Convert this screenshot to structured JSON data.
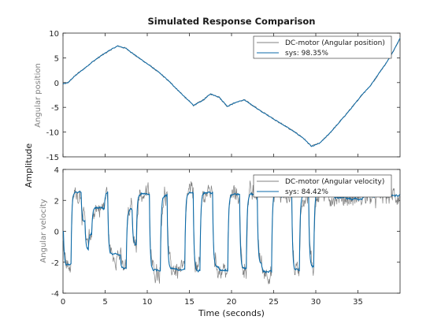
{
  "figure": {
    "title": "Simulated Response Comparison",
    "ylabel": "Amplitude",
    "xlabel": "Time (seconds)"
  },
  "colors": {
    "measured": "#808080",
    "model": "#0b6aa8",
    "axes": "#262626",
    "background": "#ffffff"
  },
  "chart_data": [
    {
      "type": "line",
      "ylabel": "Angular position",
      "xlim": [
        0,
        40
      ],
      "ylim": [
        -15,
        10
      ],
      "xticks": [
        0,
        5,
        10,
        15,
        20,
        25,
        30,
        35
      ],
      "yticks": [
        10,
        5,
        0,
        -5,
        -10,
        -15
      ],
      "grid": false,
      "legend_position": "top-right",
      "series": [
        {
          "name": "DC-motor (Angular position)",
          "style": "measured"
        },
        {
          "name": "sys: 98.35%",
          "style": "model"
        }
      ],
      "x": [
        0,
        0.6,
        1.5,
        2.5,
        3.5,
        4.5,
        5.5,
        6.5,
        7.5,
        8.5,
        9.5,
        10.5,
        11.5,
        12.5,
        13.5,
        14.5,
        15.5,
        16.5,
        17.5,
        18.5,
        19.5,
        20.5,
        21.5,
        22.5,
        23.5,
        24.5,
        25.5,
        26.5,
        27.5,
        28.5,
        29.5,
        30.5,
        31.5,
        32.5,
        33.5,
        34.5,
        35.5,
        36.5,
        37.5,
        38.5,
        39.5,
        40
      ],
      "y": [
        -0.3,
        0,
        1.5,
        2.8,
        4.2,
        5.4,
        6.5,
        7.4,
        6.9,
        5.6,
        4.4,
        3.2,
        1.9,
        0.4,
        -1.3,
        -3.0,
        -4.6,
        -3.7,
        -2.3,
        -2.9,
        -4.8,
        -4.0,
        -3.5,
        -4.6,
        -5.8,
        -6.8,
        -7.9,
        -8.9,
        -10.0,
        -11.2,
        -12.9,
        -12.2,
        -10.5,
        -8.6,
        -6.6,
        -4.6,
        -2.4,
        -0.6,
        1.9,
        4.3,
        7.3,
        9.0
      ]
    },
    {
      "type": "line",
      "ylabel": "Angular velocity",
      "xlim": [
        0,
        40
      ],
      "ylim": [
        -4,
        4
      ],
      "xticks": [
        0,
        5,
        10,
        15,
        20,
        25,
        30,
        35
      ],
      "yticks": [
        4,
        2,
        0,
        -2,
        -4
      ],
      "grid": false,
      "legend_position": "top-right",
      "series": [
        {
          "name": "DC-motor (Angular velocity)",
          "style": "measured"
        },
        {
          "name": "sys: 84.42%",
          "style": "model"
        }
      ],
      "switch_times": [
        0.1,
        1.0,
        2.2,
        2.6,
        3.0,
        3.4,
        4.9,
        5.3,
        6.8,
        7.5,
        8.2,
        8.7,
        10.3,
        11.6,
        12.4,
        13.4,
        14.5,
        15.5,
        16.3,
        17.8,
        18.5,
        19.6,
        21.0,
        21.8,
        23.1,
        23.6,
        24.8,
        25.8,
        27.2,
        28.1,
        29.2,
        29.8,
        31.0,
        32.2,
        33.6,
        35.5,
        40.0
      ],
      "switch_levels": [
        -2.2,
        2.5,
        0.6,
        -1.2,
        -0.2,
        1.5,
        2.5,
        -1.5,
        -2.4,
        1.4,
        -0.9,
        2.4,
        -2.5,
        2.3,
        -2.4,
        -2.5,
        2.5,
        -2.5,
        2.5,
        -2.3,
        -2.5,
        2.4,
        -2.4,
        2.4,
        -2.1,
        -2.6,
        2.5,
        2.3,
        -2.5,
        2.3,
        -2.3,
        2.5,
        2.3,
        2.2,
        2.1,
        2.3,
        2.4
      ]
    }
  ]
}
